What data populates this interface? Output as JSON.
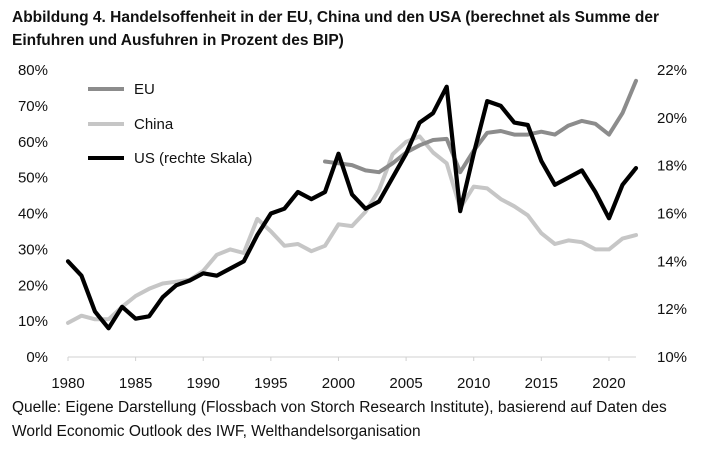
{
  "title": "Abbildung 4. Handelsoffenheit in der EU, China und den USA (berechnet als Summe der Einfuhren und Ausfuhren in Prozent des BIP)",
  "source": "Quelle: Eigene Darstellung (Flossbach von Storch Research Institute), basierend auf Daten des World Economic Outlook des IWF, Welthandelsorganisation",
  "chart_data": {
    "type": "line",
    "title": "Abbildung 4. Handelsoffenheit in der EU, China und den USA (berechnet als Summe der Einfuhren und Ausfuhren in Prozent des BIP)",
    "xlabel": "",
    "ylabel": "",
    "xlim": [
      1980,
      2022
    ],
    "x_ticks": [
      1980,
      1985,
      1990,
      1995,
      2000,
      2005,
      2010,
      2015,
      2020
    ],
    "y_left": {
      "lim": [
        0,
        80
      ],
      "ticks": [
        0,
        10,
        20,
        30,
        40,
        50,
        60,
        70,
        80
      ],
      "tick_labels": [
        "0%",
        "10%",
        "20%",
        "30%",
        "40%",
        "50%",
        "60%",
        "70%",
        "80%"
      ]
    },
    "y_right": {
      "lim": [
        10,
        22
      ],
      "ticks": [
        10,
        12,
        14,
        16,
        18,
        20,
        22
      ],
      "tick_labels": [
        "10%",
        "12%",
        "14%",
        "16%",
        "18%",
        "20%",
        "22%"
      ]
    },
    "legend_position": "top-left",
    "series": [
      {
        "name": "EU",
        "axis": "left",
        "color": "#8c8c8c",
        "x": [
          1999,
          2000,
          2001,
          2002,
          2003,
          2004,
          2005,
          2006,
          2007,
          2008,
          2009,
          2010,
          2011,
          2012,
          2013,
          2014,
          2015,
          2016,
          2017,
          2018,
          2019,
          2020,
          2021,
          2022
        ],
        "values": [
          54.5,
          54.0,
          53.5,
          52.0,
          51.5,
          54.0,
          57.0,
          59.0,
          60.5,
          60.8,
          51.5,
          57.5,
          62.5,
          63.0,
          62.0,
          62.0,
          62.8,
          62.0,
          64.5,
          65.8,
          65.0,
          62.0,
          68.0,
          77.0
        ]
      },
      {
        "name": "China",
        "axis": "left",
        "color": "#c6c6c6",
        "x": [
          1980,
          1981,
          1982,
          1983,
          1984,
          1985,
          1986,
          1987,
          1988,
          1989,
          1990,
          1991,
          1992,
          1993,
          1994,
          1995,
          1996,
          1997,
          1998,
          1999,
          2000,
          2001,
          2002,
          2003,
          2004,
          2005,
          2006,
          2007,
          2008,
          2009,
          2010,
          2011,
          2012,
          2013,
          2014,
          2015,
          2016,
          2017,
          2018,
          2019,
          2020,
          2021,
          2022
        ],
        "values": [
          9.5,
          11.5,
          10.5,
          10.5,
          14.0,
          17.0,
          19.0,
          20.5,
          21.0,
          21.5,
          24.0,
          28.5,
          30.0,
          29.0,
          38.5,
          35.0,
          31.0,
          31.5,
          29.5,
          31.0,
          37.0,
          36.5,
          40.5,
          46.5,
          56.5,
          60.0,
          61.5,
          57.0,
          54.0,
          41.5,
          47.5,
          47.0,
          44.0,
          42.0,
          39.5,
          34.5,
          31.5,
          32.5,
          32.0,
          30.0,
          30.0,
          33.0,
          34.0
        ]
      },
      {
        "name": "US (rechte Skala)",
        "axis": "right",
        "color": "#000000",
        "x": [
          1980,
          1981,
          1982,
          1983,
          1984,
          1985,
          1986,
          1987,
          1988,
          1989,
          1990,
          1991,
          1992,
          1993,
          1994,
          1995,
          1996,
          1997,
          1998,
          1999,
          2000,
          2001,
          2002,
          2003,
          2004,
          2005,
          2006,
          2007,
          2008,
          2009,
          2010,
          2011,
          2012,
          2013,
          2014,
          2015,
          2016,
          2017,
          2018,
          2019,
          2020,
          2021,
          2022
        ],
        "values": [
          14.0,
          13.4,
          11.9,
          11.2,
          12.1,
          11.6,
          11.7,
          12.5,
          13.0,
          13.2,
          13.5,
          13.4,
          13.7,
          14.0,
          15.1,
          16.0,
          16.2,
          16.9,
          16.6,
          16.9,
          18.5,
          16.8,
          16.2,
          16.5,
          17.5,
          18.5,
          19.8,
          20.2,
          21.3,
          16.1,
          18.5,
          20.7,
          20.5,
          19.8,
          19.7,
          18.2,
          17.2,
          17.5,
          17.8,
          16.9,
          15.8,
          17.2,
          17.9
        ]
      }
    ]
  }
}
